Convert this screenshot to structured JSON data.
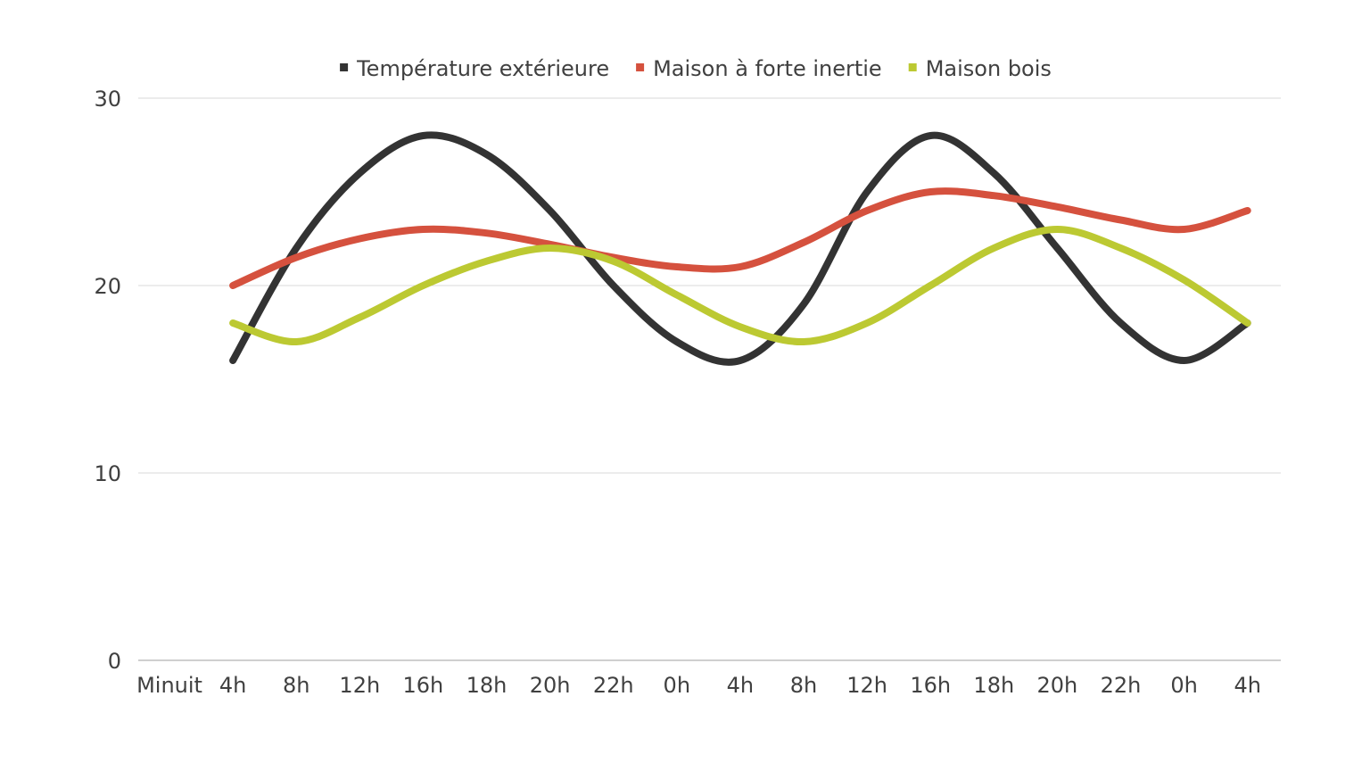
{
  "chart_data": {
    "type": "line",
    "title": "",
    "xlabel": "",
    "ylabel": "",
    "categories": [
      "Minuit",
      "4h",
      "8h",
      "12h",
      "16h",
      "18h",
      "20h",
      "22h",
      "0h",
      "4h",
      "8h",
      "12h",
      "16h",
      "18h",
      "20h",
      "22h",
      "0h",
      "4h"
    ],
    "ylim": [
      0,
      30
    ],
    "yticks": [
      "0",
      "10",
      "20",
      "30"
    ],
    "grid": true,
    "legend_position": "top",
    "smooth": true,
    "series": [
      {
        "name": "Température extérieure",
        "color": "#333333",
        "values": [
          null,
          16,
          22,
          26,
          28,
          27,
          24,
          20,
          17,
          16,
          19,
          25,
          28,
          26,
          22,
          18,
          16,
          18
        ]
      },
      {
        "name": "Maison à forte inertie",
        "color": "#d5513e",
        "values": [
          null,
          20,
          21.5,
          22.5,
          23,
          22.8,
          22.2,
          21.5,
          21,
          21,
          22.3,
          24,
          25,
          24.8,
          24.2,
          23.5,
          23,
          24
        ]
      },
      {
        "name": "Maison bois",
        "color": "#bcc932",
        "values": [
          null,
          18,
          17,
          18.3,
          20,
          21.3,
          22,
          21.3,
          19.5,
          17.8,
          17,
          18,
          20,
          22,
          23,
          22,
          20.3,
          18
        ]
      }
    ]
  }
}
